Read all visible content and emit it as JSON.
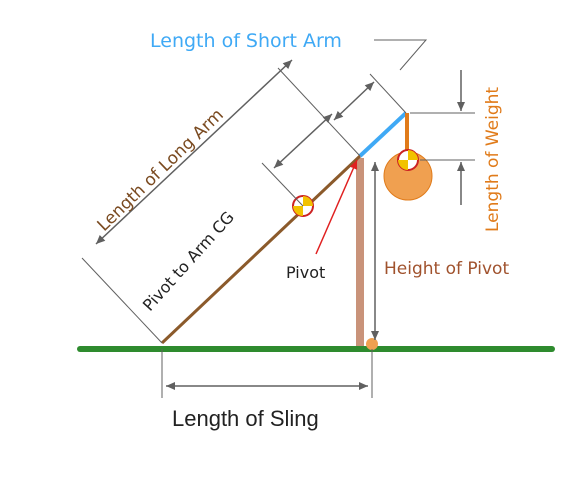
{
  "labels": {
    "short_arm": "Length of Short Arm",
    "long_arm": "Length of Long Arm",
    "weight": "Length of Weight",
    "pivot_to_cg": "Pivot to Arm CG",
    "pivot": "Pivot",
    "height_of_pivot": "Height of Pivot",
    "sling": "Length of Sling"
  },
  "colors": {
    "short_arm_label": "#3fa9f5",
    "short_arm_line": "#3fa9f5",
    "long_arm_line": "#8b5a2b",
    "weight_label": "#e07b1a",
    "weight_fill": "#f0a050",
    "pivot_arrow": "#e02020",
    "tower_fill": "#c9937a",
    "height_label": "#a0522d",
    "ground": "#2e8b2e",
    "dimension": "#606060",
    "text_dark": "#222222"
  },
  "icons": {
    "arm_cg": "center-of-gravity-icon",
    "weight_cg": "center-of-gravity-icon"
  }
}
